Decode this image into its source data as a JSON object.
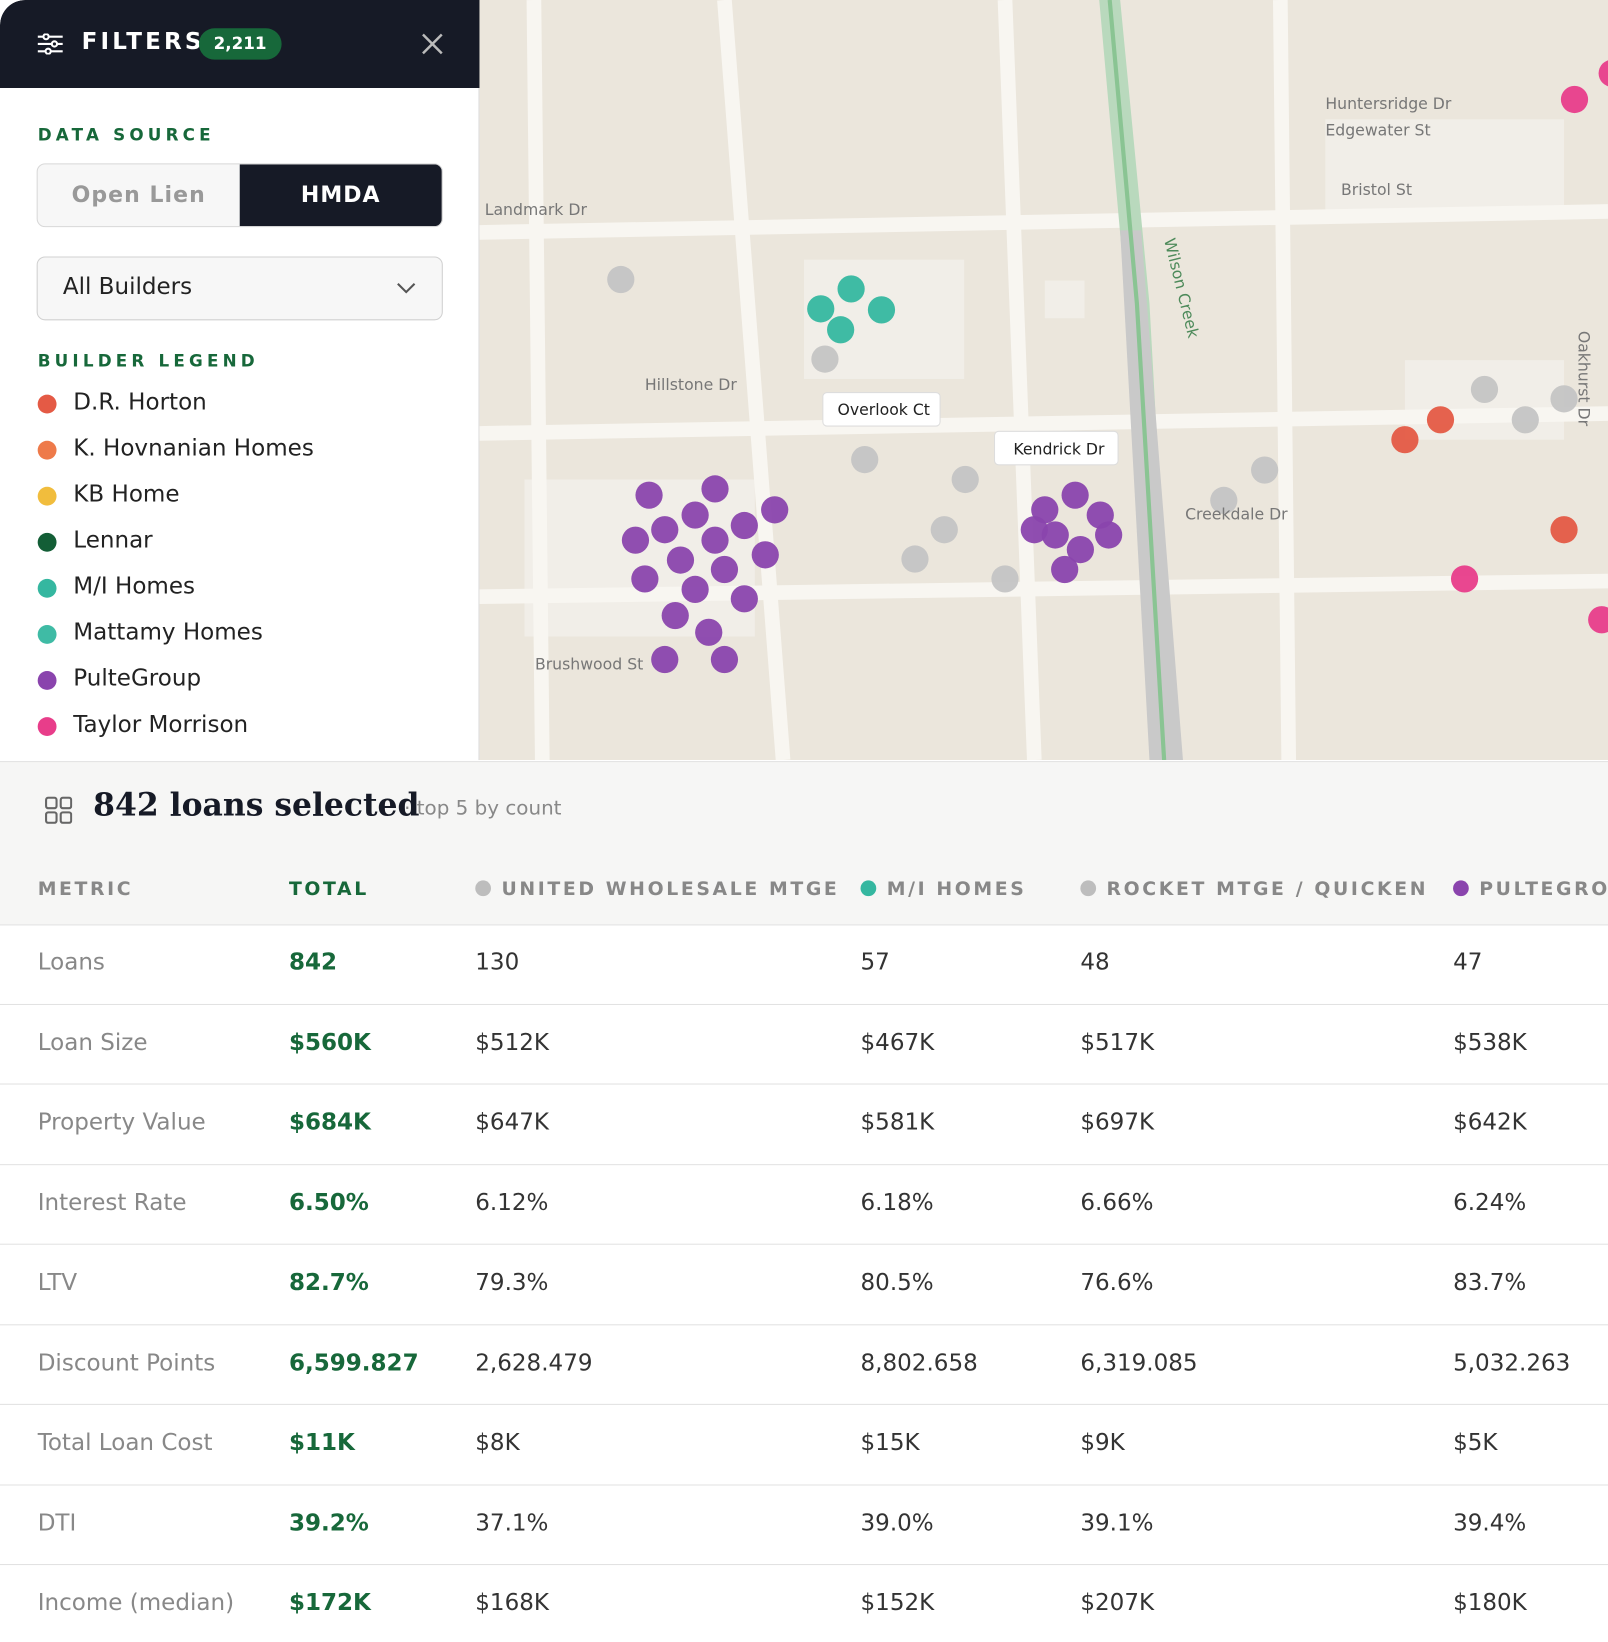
{
  "filters": {
    "title": "FILTERS",
    "count": "2,211"
  },
  "data_source": {
    "label": "DATA SOURCE",
    "options": [
      "Open Lien",
      "HMDA"
    ],
    "selected": 1
  },
  "builder_select": "All Builders",
  "builder_legend": {
    "label": "BUILDER LEGEND",
    "items": [
      {
        "name": "D.R. Horton",
        "color": "#e45a45"
      },
      {
        "name": "K. Hovnanian Homes",
        "color": "#ee7a4a"
      },
      {
        "name": "KB Home",
        "color": "#f1bd3d"
      },
      {
        "name": "Lennar",
        "color": "#135e36"
      },
      {
        "name": "M/I Homes",
        "color": "#35b7a0"
      },
      {
        "name": "Mattamy Homes",
        "color": "#3fbba5"
      },
      {
        "name": "PulteGroup",
        "color": "#8a44ad"
      },
      {
        "name": "Taylor Morrison",
        "color": "#e83d8a"
      }
    ]
  },
  "map": {
    "streets": [
      "Landmark Dr",
      "Hillstone Dr",
      "Overlook Ct",
      "Kendrick Dr",
      "Wilson Creek",
      "Creekdale Dr",
      "Brushwood St",
      "Huntersridge Dr",
      "Edgewater St",
      "Bristol St",
      "Oakhurst Dr"
    ]
  },
  "summary": {
    "title": "842 loans selected",
    "note": "· top 5 by count"
  },
  "table": {
    "columns": [
      {
        "label": "METRIC"
      },
      {
        "label": "TOTAL"
      },
      {
        "label": "UNITED WHOLESALE MTGE",
        "color": "#bdbdbd"
      },
      {
        "label": "M/I HOMES",
        "color": "#35b7a0"
      },
      {
        "label": "ROCKET MTGE / QUICKEN",
        "color": "#bdbdbd"
      },
      {
        "label": "PULTEGROUP",
        "color": "#8a44ad"
      }
    ],
    "rows": [
      [
        "Loans",
        "842",
        "130",
        "57",
        "48",
        "47"
      ],
      [
        "Loan Size",
        "$560K",
        "$512K",
        "$467K",
        "$517K",
        "$538K"
      ],
      [
        "Property Value",
        "$684K",
        "$647K",
        "$581K",
        "$697K",
        "$642K"
      ],
      [
        "Interest Rate",
        "6.50%",
        "6.12%",
        "6.18%",
        "6.66%",
        "6.24%"
      ],
      [
        "LTV",
        "82.7%",
        "79.3%",
        "80.5%",
        "76.6%",
        "83.7%"
      ],
      [
        "Discount Points",
        "6,599.827",
        "2,628.479",
        "8,802.658",
        "6,319.085",
        "5,032.263"
      ],
      [
        "Total Loan Cost",
        "$11K",
        "$8K",
        "$15K",
        "$9K",
        "$5K"
      ],
      [
        "DTI",
        "39.2%",
        "37.1%",
        "39.0%",
        "39.1%",
        "39.4%"
      ],
      [
        "Income (median)",
        "$172K",
        "$168K",
        "$152K",
        "$207K",
        "$180K"
      ]
    ]
  }
}
